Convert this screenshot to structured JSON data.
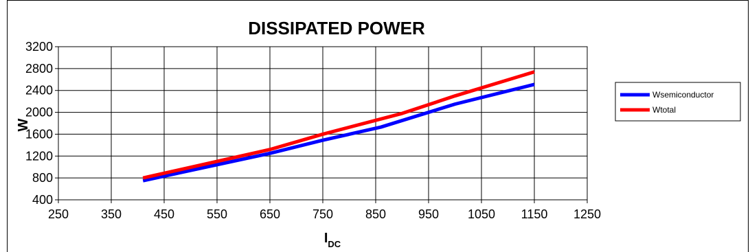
{
  "chart_data": {
    "type": "line",
    "title": "DISSIPATED POWER",
    "xlabel": "I",
    "xlabel_sub": "DC",
    "ylabel": "W",
    "xlim": [
      250,
      1250
    ],
    "ylim": [
      400,
      3200
    ],
    "xticks": [
      250,
      350,
      450,
      550,
      650,
      750,
      850,
      950,
      1050,
      1150,
      1250
    ],
    "yticks": [
      400,
      800,
      1200,
      1600,
      2000,
      2400,
      2800,
      3200
    ],
    "grid": true,
    "legend_position": "right",
    "series": [
      {
        "name": "Wsemiconductor",
        "color": "#0000ff",
        "x": [
          410,
          650,
          750,
          860,
          1000,
          1150
        ],
        "y": [
          750,
          1250,
          1490,
          1730,
          2150,
          2510
        ]
      },
      {
        "name": "Wtotal",
        "color": "#ff0000",
        "x": [
          410,
          650,
          750,
          900,
          1000,
          1150
        ],
        "y": [
          800,
          1320,
          1600,
          1980,
          2300,
          2740
        ]
      }
    ]
  }
}
